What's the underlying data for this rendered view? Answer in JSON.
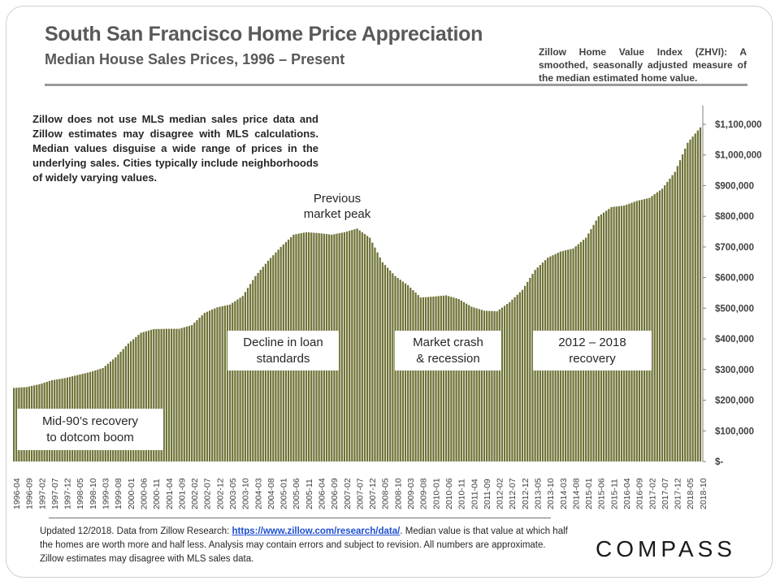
{
  "header": {
    "title": "South San Francisco Home Price Appreciation",
    "subtitle": "Median House Sales Prices, 1996 – Present",
    "zhvi_note": "Zillow Home Value Index (ZHVI): A smoothed, seasonally adjusted measure of the median estimated home value."
  },
  "disclaimer": "Zillow does not use MLS median sales price data and Zillow estimates may disagree with MLS calculations. Median values disguise a wide range of prices in the underlying sales. Cities typically include neighborhoods of widely varying values.",
  "annotations": {
    "peak_line1": "Previous",
    "peak_line2": "market peak",
    "callout1_line1": "Mid-90’s recovery",
    "callout1_line2": "to dotcom boom",
    "callout2_line1": "Decline in loan",
    "callout2_line2": "standards",
    "callout3_line1": "Market crash",
    "callout3_line2": "& recession",
    "callout4_line1": "2012 – 2018",
    "callout4_line2": "recovery"
  },
  "footer": {
    "text_before": "Updated 12/2018. Data from Zillow Research: ",
    "link": "https://www.zillow.com/research/data/",
    "text_after": ". Median value is that value at which half the homes are worth more and half less. Analysis may contain errors and subject to revision. All numbers are approximate. Zillow estimates may disagree with MLS sales data."
  },
  "logo": "COMPASS",
  "chart_data": {
    "type": "bar",
    "x_start": "1996-04",
    "x_end": "2018-10",
    "x_tick_labels": [
      "1996-04",
      "1996-09",
      "1997-02",
      "1997-07",
      "1997-12",
      "1998-05",
      "1998-10",
      "1999-03",
      "1999-08",
      "2000-01",
      "2000-06",
      "2000-11",
      "2001-04",
      "2001-09",
      "2002-02",
      "2002-07",
      "2002-12",
      "2003-05",
      "2003-10",
      "2004-03",
      "2004-08",
      "2005-01",
      "2005-06",
      "2005-11",
      "2006-04",
      "2006-09",
      "2007-02",
      "2007-07",
      "2007-12",
      "2008-05",
      "2008-10",
      "2009-03",
      "2009-08",
      "2010-01",
      "2010-06",
      "2010-11",
      "2011-04",
      "2011-09",
      "2012-02",
      "2012-07",
      "2012-12",
      "2013-05",
      "2013-10",
      "2014-03",
      "2014-08",
      "2015-01",
      "2015-06",
      "2015-11",
      "2016-04",
      "2016-09",
      "2017-02",
      "2017-07",
      "2017-12",
      "2018-05",
      "2018-10"
    ],
    "y_tick_labels": [
      "$-",
      "$100,000",
      "$200,000",
      "$300,000",
      "$400,000",
      "$500,000",
      "$600,000",
      "$700,000",
      "$800,000",
      "$900,000",
      "$1,000,000",
      "$1,100,000"
    ],
    "ylim": [
      0,
      1100000
    ],
    "values_by_tick": [
      240000,
      243000,
      252000,
      265000,
      272000,
      282000,
      292000,
      305000,
      340000,
      385000,
      420000,
      432000,
      433000,
      433000,
      445000,
      485000,
      503000,
      512000,
      540000,
      605000,
      655000,
      700000,
      740000,
      748000,
      745000,
      740000,
      748000,
      760000,
      730000,
      650000,
      605000,
      575000,
      535000,
      538000,
      542000,
      530000,
      505000,
      492000,
      490000,
      520000,
      560000,
      625000,
      665000,
      685000,
      695000,
      730000,
      800000,
      830000,
      835000,
      850000,
      860000,
      890000,
      945000,
      1040000,
      1090000
    ],
    "bar_color": "#6f7236",
    "grid": false,
    "title": "",
    "xlabel": "",
    "ylabel": ""
  }
}
